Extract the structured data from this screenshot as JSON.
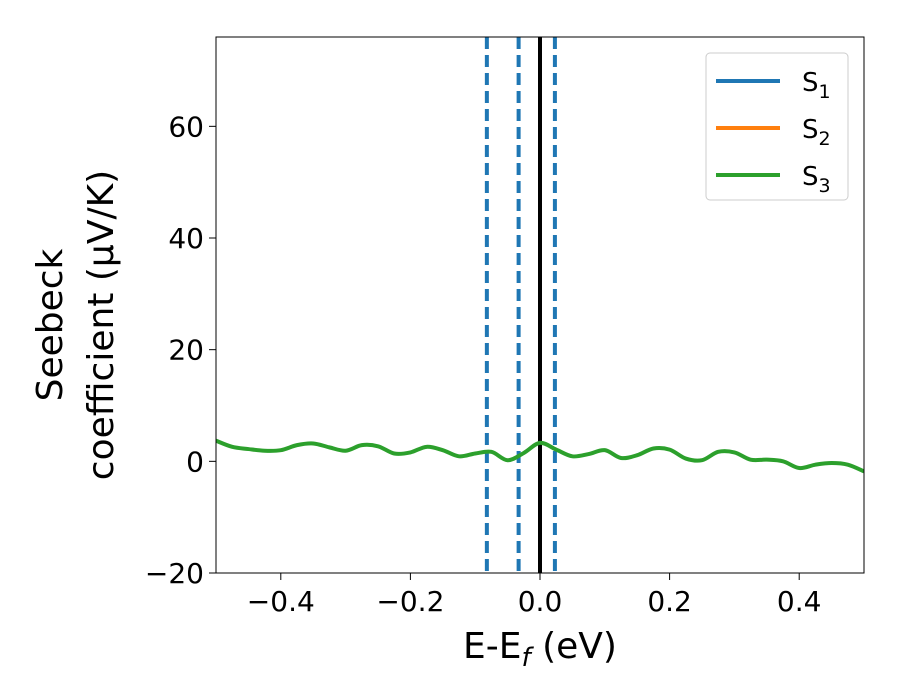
{
  "chart_data": {
    "type": "line",
    "xlabel_main": "E-E",
    "xlabel_sub": "f",
    "xlabel_tail": " (eV)",
    "ylabel_line1": "Seebeck",
    "ylabel_line2": "coefficient  (μV/K)",
    "xlim": [
      -0.5,
      0.5
    ],
    "ylim": [
      -20,
      76
    ],
    "xticks": [
      -0.4,
      -0.2,
      0.0,
      0.2,
      0.4
    ],
    "xtick_labels": [
      "−0.4",
      "−0.2",
      "0.0",
      "0.2",
      "0.4"
    ],
    "yticks": [
      -20,
      0,
      20,
      40,
      60
    ],
    "ytick_labels": [
      "−20",
      "0",
      "20",
      "40",
      "60"
    ],
    "grid": false,
    "legend_position": "top-right",
    "colors": {
      "S1": "#1f77b4",
      "S2": "#ff7f0e",
      "S3": "#2ca02c",
      "fermi": "#000000"
    },
    "series": [
      {
        "name_main": "S",
        "name_sub": "1",
        "color": "#1f77b4",
        "x": [],
        "y": []
      },
      {
        "name_main": "S",
        "name_sub": "2",
        "color": "#ff7f0e",
        "x": [],
        "y": []
      },
      {
        "name_main": "S",
        "name_sub": "3",
        "color": "#2ca02c",
        "x": [
          -0.5,
          -0.475,
          -0.45,
          -0.425,
          -0.4,
          -0.375,
          -0.35,
          -0.325,
          -0.3,
          -0.275,
          -0.25,
          -0.225,
          -0.2,
          -0.175,
          -0.15,
          -0.125,
          -0.1,
          -0.075,
          -0.05,
          -0.025,
          0.0,
          0.025,
          0.05,
          0.075,
          0.1,
          0.125,
          0.15,
          0.175,
          0.2,
          0.225,
          0.25,
          0.275,
          0.3,
          0.325,
          0.35,
          0.375,
          0.4,
          0.425,
          0.45,
          0.475,
          0.5
        ],
        "y": [
          3.7,
          2.6,
          2.2,
          1.9,
          2.0,
          2.9,
          3.2,
          2.5,
          1.9,
          2.9,
          2.7,
          1.4,
          1.6,
          2.6,
          2.0,
          0.9,
          1.4,
          1.7,
          0.2,
          1.5,
          3.3,
          2.1,
          0.9,
          1.3,
          2.0,
          0.6,
          1.1,
          2.3,
          2.1,
          0.5,
          0.2,
          1.7,
          1.6,
          0.3,
          0.3,
          0.0,
          -1.2,
          -0.6,
          -0.3,
          -0.6,
          -1.8
        ]
      }
    ],
    "vlines": [
      {
        "x": -0.082,
        "style": "dashed",
        "color": "#1f77b4"
      },
      {
        "x": -0.033,
        "style": "dashed",
        "color": "#1f77b4"
      },
      {
        "x": 0.0,
        "style": "solid",
        "color": "#000000"
      },
      {
        "x": 0.023,
        "style": "dashed",
        "color": "#1f77b4"
      }
    ]
  }
}
